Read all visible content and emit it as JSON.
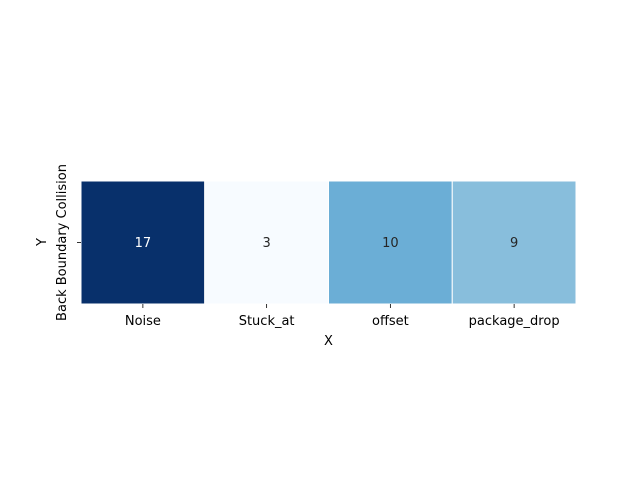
{
  "chart_data": {
    "type": "heatmap",
    "x": [
      "Noise",
      "Stuck_at",
      "offset",
      "package_drop"
    ],
    "y": [
      "Back Boundary Collision"
    ],
    "values": [
      [
        17,
        3,
        10,
        9
      ]
    ],
    "xlabel": "X",
    "ylabel": "Y",
    "colormap": "Blues",
    "colorbar": false,
    "annotations": true,
    "colors": {
      "low": "#f7fbff",
      "high": "#08306b",
      "text_dark": "#262626",
      "text_light": "#ffffff"
    }
  }
}
